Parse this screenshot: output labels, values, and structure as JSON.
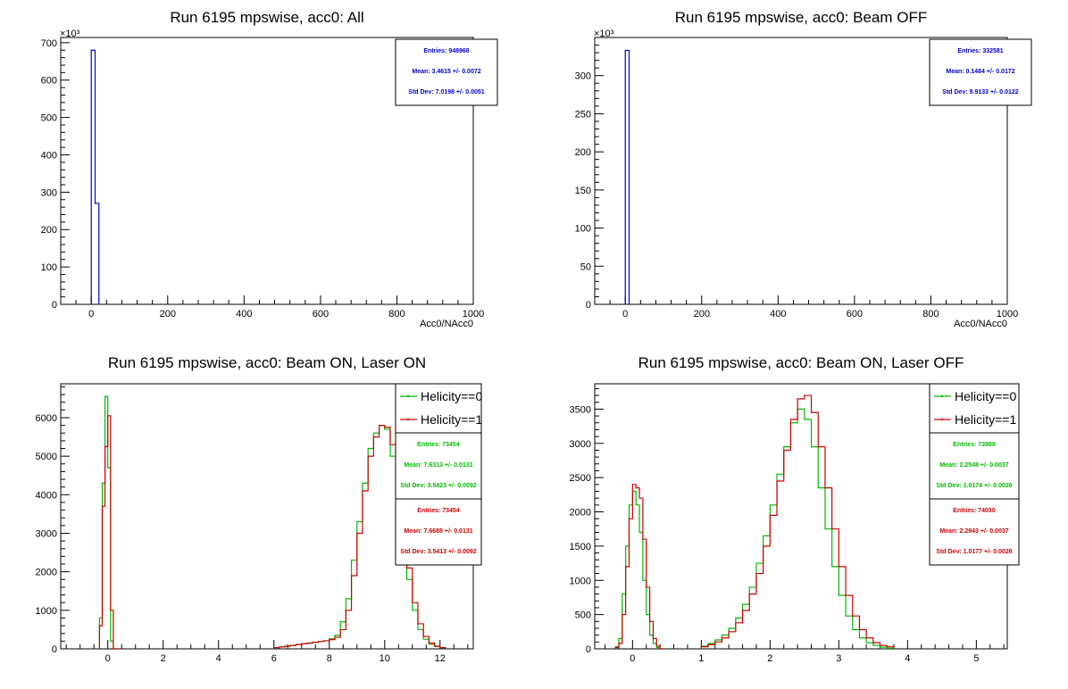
{
  "pads": [
    {
      "title": "Run 6195 mpswise, acc0: All",
      "chart_data": {
        "type": "bar",
        "xlabel": "Acc0/NAcc0",
        "ylabel": "",
        "xlim": [
          -80,
          1000
        ],
        "ylim": [
          0,
          714
        ],
        "y_exponent_label": "×10³",
        "x_ticks": [
          0,
          200,
          400,
          600,
          800,
          1000
        ],
        "y_ticks": [
          0,
          100,
          200,
          300,
          400,
          500,
          600,
          700
        ],
        "series": [
          {
            "color": "#0000cc",
            "bins": [
              [
                0,
                10,
                680
              ],
              [
                10,
                20,
                270
              ]
            ]
          }
        ],
        "stats": [
          {
            "color": "#0000cc",
            "lines": [
              "Entries: 948968",
              "Mean: 3.4615 +/- 0.0072",
              "Std Dev: 7.0198 +/- 0.0051"
            ]
          }
        ]
      }
    },
    {
      "title": "Run 6195 mpswise, acc0: Beam OFF",
      "chart_data": {
        "type": "bar",
        "xlabel": "Acc0/NAcc0",
        "ylabel": "",
        "xlim": [
          -80,
          1000
        ],
        "ylim": [
          0,
          350
        ],
        "y_exponent_label": "×10³",
        "x_ticks": [
          0,
          200,
          400,
          600,
          800,
          1000
        ],
        "y_ticks": [
          0,
          50,
          100,
          150,
          200,
          250,
          300
        ],
        "series": [
          {
            "color": "#0000cc",
            "bins": [
              [
                0,
                10,
                333
              ]
            ]
          }
        ],
        "stats": [
          {
            "color": "#0000cc",
            "lines": [
              "Entries: 332581",
              "Mean: 0.1484 +/- 0.0172",
              "Std Dev: 9.9133 +/- 0.0122"
            ]
          }
        ]
      }
    },
    {
      "title": "Run 6195 mpswise, acc0: Beam ON, Laser ON",
      "chart_data": {
        "type": "line",
        "xlabel": "",
        "ylabel": "",
        "xlim": [
          -1.7,
          13.2
        ],
        "ylim": [
          0,
          6880
        ],
        "x_ticks": [
          0,
          2,
          4,
          6,
          8,
          10,
          12
        ],
        "y_ticks": [
          0,
          1000,
          2000,
          3000,
          4000,
          5000,
          6000
        ],
        "series": [
          {
            "name": "Helicity==0",
            "color": "#00bb00",
            "x0": -0.3,
            "bw": 0.1,
            "values": [
              800,
              4300,
              6550,
              4700,
              200,
              0,
              0
            ]
          },
          {
            "name": "Helicity==1",
            "color": "#cc0000",
            "x0": -0.3,
            "bw": 0.1,
            "values": [
              600,
              3700,
              5250,
              6050,
              1000,
              0,
              0
            ]
          },
          {
            "name": "Helicity==0",
            "color": "#00bb00",
            "x0": 6.0,
            "bw": 0.2,
            "values": [
              30,
              50,
              70,
              90,
              110,
              130,
              150,
              170,
              190,
              210,
              260,
              350,
              700,
              1300,
              2300,
              3300,
              4300,
              5200,
              5600,
              5800,
              5700,
              5000,
              4000,
              2800,
              1800,
              1000,
              500,
              250,
              120,
              60,
              30
            ]
          },
          {
            "name": "Helicity==1",
            "color": "#cc0000",
            "x0": 6.0,
            "bw": 0.2,
            "values": [
              30,
              50,
              70,
              90,
              110,
              130,
              150,
              170,
              190,
              210,
              240,
              300,
              500,
              1000,
              1900,
              3000,
              4100,
              5000,
              5500,
              5800,
              5750,
              5300,
              4400,
              3200,
              2100,
              1200,
              650,
              320,
              150,
              70,
              30
            ]
          }
        ],
        "legend": [
          {
            "label": "Helicity==0",
            "color": "#00bb00"
          },
          {
            "label": "Helicity==1",
            "color": "#cc0000"
          }
        ],
        "stats": [
          {
            "color": "#00bb00",
            "lines": [
              "Entries: 73454",
              "Mean: 7.6313 +/- 0.0131",
              "Std Dev: 3.5423 +/- 0.0092"
            ]
          },
          {
            "color": "#cc0000",
            "lines": [
              "Entries: 73454",
              "Mean: 7.6688 +/- 0.0131",
              "Std Dev: 3.5413 +/- 0.0092"
            ]
          }
        ]
      }
    },
    {
      "title": "Run 6195 mpswise, acc0: Beam ON, Laser OFF",
      "chart_data": {
        "type": "line",
        "xlabel": "",
        "ylabel": "",
        "xlim": [
          -0.55,
          5.45
        ],
        "ylim": [
          0,
          3870
        ],
        "x_ticks": [
          0,
          1,
          2,
          3,
          4,
          5
        ],
        "y_ticks": [
          0,
          500,
          1000,
          1500,
          2000,
          2500,
          3000,
          3500
        ],
        "series": [
          {
            "name": "Helicity==0",
            "color": "#00bb00",
            "x0": -0.25,
            "bw": 0.05,
            "values": [
              30,
              150,
              800,
              1500,
              2100,
              2300,
              2100,
              1700,
              1000,
              500,
              200,
              80,
              20,
              0
            ]
          },
          {
            "name": "Helicity==1",
            "color": "#cc0000",
            "x0": -0.25,
            "bw": 0.05,
            "values": [
              20,
              80,
              500,
              1200,
              1900,
              2400,
              2350,
              2200,
              1600,
              900,
              400,
              150,
              40,
              0
            ]
          },
          {
            "name": "Helicity==0",
            "color": "#00bb00",
            "x0": 1.0,
            "bw": 0.1,
            "values": [
              40,
              80,
              130,
              200,
              300,
              450,
              650,
              900,
              1250,
              1650,
              2100,
              2550,
              2950,
              3300,
              3500,
              3350,
              2950,
              2350,
              1750,
              1200,
              780,
              480,
              280,
              160,
              90,
              50,
              25,
              10
            ]
          },
          {
            "name": "Helicity==1",
            "color": "#cc0000",
            "x0": 1.0,
            "bw": 0.1,
            "values": [
              30,
              60,
              100,
              160,
              250,
              380,
              560,
              800,
              1100,
              1500,
              1950,
              2450,
              2900,
              3350,
              3650,
              3700,
              3450,
              2950,
              2350,
              1750,
              1200,
              780,
              480,
              280,
              160,
              90,
              50,
              30
            ]
          }
        ],
        "legend": [
          {
            "label": "Helicity==0",
            "color": "#00bb00"
          },
          {
            "label": "Helicity==1",
            "color": "#cc0000"
          }
        ],
        "stats": [
          {
            "color": "#00bb00",
            "lines": [
              "Entries: 73989",
              "Mean: 2.2548 +/- 0.0037",
              "Std Dev: 1.0174 +/- 0.0026"
            ]
          },
          {
            "color": "#cc0000",
            "lines": [
              "Entries: 74030",
              "Mean: 2.2943 +/- 0.0037",
              "Std Dev: 1.0177 +/- 0.0026"
            ]
          }
        ]
      }
    }
  ]
}
